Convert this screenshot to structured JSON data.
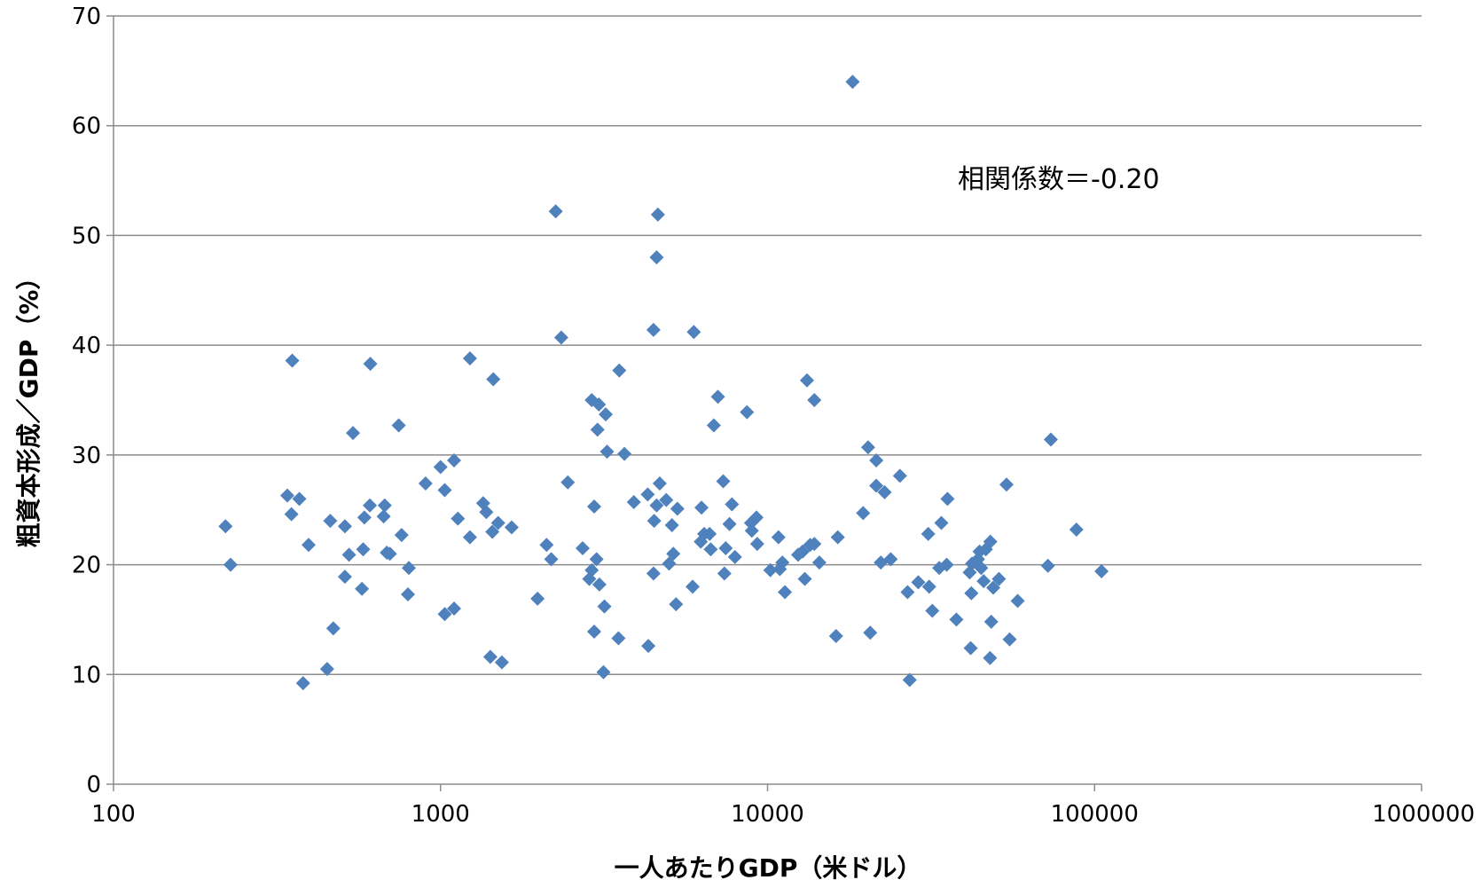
{
  "chart_data": {
    "type": "scatter",
    "title": "",
    "xlabel": "一人あたりGDP（米ドル）",
    "ylabel": "粗資本形成／GDP（%）",
    "x_scale": "log",
    "xlim": [
      100,
      1000000
    ],
    "ylim": [
      0,
      70
    ],
    "x_ticks": [
      "100",
      "1000",
      "10000",
      "100000",
      "1000000"
    ],
    "y_ticks": [
      "0",
      "10",
      "20",
      "30",
      "40",
      "50",
      "60",
      "70"
    ],
    "grid": "horizontal",
    "legend": "none",
    "annotation": "相関係数＝-0.20",
    "marker": "diamond",
    "color": "#4f81bd",
    "points": [
      [
        220,
        23.5
      ],
      [
        228,
        20
      ],
      [
        340,
        26.3
      ],
      [
        350,
        24.6
      ],
      [
        352,
        38.6
      ],
      [
        370,
        26
      ],
      [
        380,
        9.2
      ],
      [
        395,
        21.8
      ],
      [
        450,
        10.5
      ],
      [
        460,
        24
      ],
      [
        470,
        14.2
      ],
      [
        510,
        23.5
      ],
      [
        510,
        18.9
      ],
      [
        525,
        20.9
      ],
      [
        540,
        32
      ],
      [
        575,
        17.8
      ],
      [
        580,
        21.4
      ],
      [
        585,
        24.3
      ],
      [
        610,
        38.3
      ],
      [
        608,
        25.4
      ],
      [
        675,
        25.4
      ],
      [
        670,
        24.4
      ],
      [
        685,
        21.1
      ],
      [
        700,
        21
      ],
      [
        745,
        32.7
      ],
      [
        760,
        22.7
      ],
      [
        800,
        19.7
      ],
      [
        795,
        17.3
      ],
      [
        900,
        27.4
      ],
      [
        1000,
        28.9
      ],
      [
        1030,
        26.8
      ],
      [
        1030,
        15.5
      ],
      [
        1100,
        29.5
      ],
      [
        1100,
        16
      ],
      [
        1130,
        24.2
      ],
      [
        1230,
        38.8
      ],
      [
        1230,
        22.5
      ],
      [
        1350,
        25.6
      ],
      [
        1380,
        24.8
      ],
      [
        1420,
        11.6
      ],
      [
        1440,
        23
      ],
      [
        1450,
        36.9
      ],
      [
        1500,
        23.8
      ],
      [
        1540,
        11.1
      ],
      [
        1650,
        23.4
      ],
      [
        1980,
        16.9
      ],
      [
        2110,
        21.8
      ],
      [
        2180,
        20.5
      ],
      [
        2250,
        52.2
      ],
      [
        2340,
        40.7
      ],
      [
        2450,
        27.5
      ],
      [
        2720,
        21.5
      ],
      [
        2850,
        18.7
      ],
      [
        2900,
        19.5
      ],
      [
        2900,
        35
      ],
      [
        2950,
        25.3
      ],
      [
        2950,
        13.9
      ],
      [
        3000,
        20.5
      ],
      [
        3020,
        32.3
      ],
      [
        3050,
        34.6
      ],
      [
        3060,
        18.2
      ],
      [
        3150,
        10.2
      ],
      [
        3170,
        16.2
      ],
      [
        3200,
        33.7
      ],
      [
        3230,
        30.3
      ],
      [
        3500,
        13.3
      ],
      [
        3520,
        37.7
      ],
      [
        3650,
        30.1
      ],
      [
        3900,
        25.7
      ],
      [
        4300,
        26.4
      ],
      [
        4320,
        12.6
      ],
      [
        4480,
        19.2
      ],
      [
        4480,
        41.4
      ],
      [
        4500,
        24
      ],
      [
        4580,
        25.4
      ],
      [
        4580,
        48
      ],
      [
        4620,
        51.9
      ],
      [
        4680,
        27.4
      ],
      [
        4900,
        25.9
      ],
      [
        5000,
        20.1
      ],
      [
        5100,
        23.6
      ],
      [
        5150,
        21
      ],
      [
        5250,
        16.4
      ],
      [
        5300,
        25.1
      ],
      [
        5900,
        18
      ],
      [
        5950,
        41.2
      ],
      [
        6250,
        22.1
      ],
      [
        6280,
        25.2
      ],
      [
        6400,
        22.8
      ],
      [
        6650,
        22.8
      ],
      [
        6700,
        21.4
      ],
      [
        6850,
        32.7
      ],
      [
        7050,
        35.3
      ],
      [
        7320,
        27.6
      ],
      [
        7380,
        19.2
      ],
      [
        7450,
        21.5
      ],
      [
        7650,
        23.7
      ],
      [
        7780,
        25.5
      ],
      [
        7950,
        20.7
      ],
      [
        8650,
        33.9
      ],
      [
        8950,
        23.1
      ],
      [
        8900,
        23.8
      ],
      [
        9250,
        24.3
      ],
      [
        9300,
        21.9
      ],
      [
        10200,
        19.5
      ],
      [
        10800,
        22.5
      ],
      [
        10900,
        19.6
      ],
      [
        11100,
        20.2
      ],
      [
        11300,
        17.5
      ],
      [
        12400,
        20.9
      ],
      [
        12800,
        21.2
      ],
      [
        13000,
        18.7
      ],
      [
        13200,
        36.8
      ],
      [
        13500,
        21.8
      ],
      [
        13900,
        35
      ],
      [
        13900,
        21.9
      ],
      [
        14400,
        20.2
      ],
      [
        16200,
        13.5
      ],
      [
        16400,
        22.5
      ],
      [
        18200,
        64
      ],
      [
        19600,
        24.7
      ],
      [
        20300,
        30.7
      ],
      [
        20600,
        13.8
      ],
      [
        21500,
        27.2
      ],
      [
        21500,
        29.5
      ],
      [
        22200,
        20.2
      ],
      [
        22800,
        26.6
      ],
      [
        23800,
        20.5
      ],
      [
        25400,
        28.1
      ],
      [
        26800,
        17.5
      ],
      [
        27200,
        9.5
      ],
      [
        28900,
        18.4
      ],
      [
        31000,
        22.8
      ],
      [
        31200,
        18
      ],
      [
        31900,
        15.8
      ],
      [
        33500,
        19.7
      ],
      [
        34000,
        23.8
      ],
      [
        35300,
        20
      ],
      [
        35500,
        26
      ],
      [
        37800,
        15
      ],
      [
        41500,
        19.3
      ],
      [
        41800,
        12.4
      ],
      [
        42000,
        17.4
      ],
      [
        42200,
        20.1
      ],
      [
        44000,
        20.5
      ],
      [
        44500,
        21.2
      ],
      [
        45000,
        19.7
      ],
      [
        45800,
        18.5
      ],
      [
        46500,
        21.4
      ],
      [
        47900,
        11.5
      ],
      [
        48300,
        14.8
      ],
      [
        48000,
        22.1
      ],
      [
        49000,
        17.9
      ],
      [
        51000,
        18.7
      ],
      [
        53800,
        27.3
      ],
      [
        55000,
        13.2
      ],
      [
        58200,
        16.7
      ],
      [
        72000,
        19.9
      ],
      [
        73500,
        31.4
      ],
      [
        88000,
        23.2
      ],
      [
        105000,
        19.4
      ]
    ]
  }
}
